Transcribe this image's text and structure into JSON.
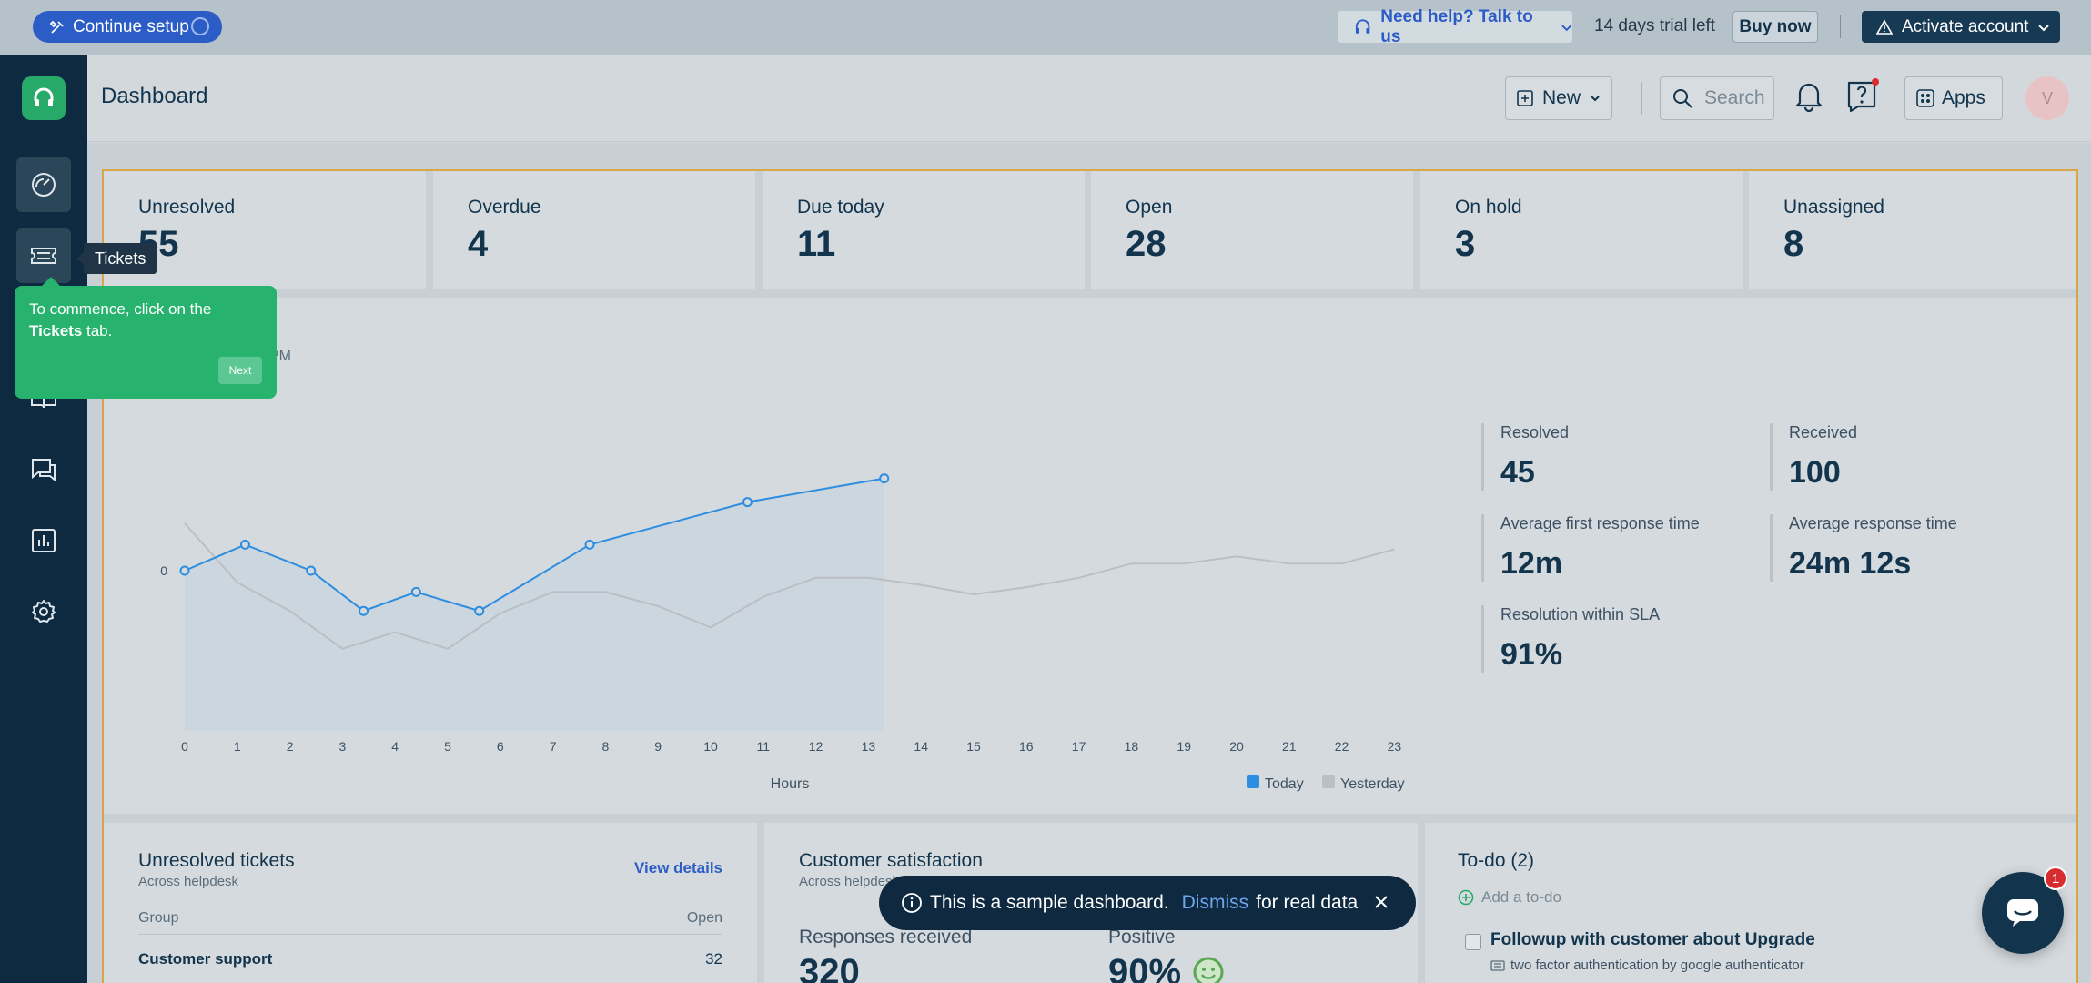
{
  "topbar": {
    "continue_setup": "Continue setup",
    "need_help": "Need help? Talk to us",
    "trial_text": "14 days trial left",
    "buy_now": "Buy now",
    "activate_account": "Activate account"
  },
  "header": {
    "title": "Dashboard",
    "new_label": "New",
    "search_placeholder": "Search",
    "apps_label": "Apps",
    "avatar_initial": "V"
  },
  "sidebar": {
    "items": [
      {
        "name": "dashboard",
        "icon": "dashboard-gauge-icon"
      },
      {
        "name": "tickets",
        "icon": "ticket-icon"
      },
      {
        "name": "knowledge-base",
        "icon": "book-icon"
      },
      {
        "name": "discussions",
        "icon": "chat-icon"
      },
      {
        "name": "reports",
        "icon": "bar-chart-icon"
      },
      {
        "name": "admin",
        "icon": "gear-icon"
      }
    ]
  },
  "tooltip": {
    "text": "Tickets"
  },
  "coach": {
    "line1": "To commence, click on the",
    "bold": "Tickets",
    "line2": " tab.",
    "next": "Next"
  },
  "cards": [
    {
      "label": "Unresolved",
      "value": "55"
    },
    {
      "label": "Overdue",
      "value": "4"
    },
    {
      "label": "Due today",
      "value": "11"
    },
    {
      "label": "Open",
      "value": "28"
    },
    {
      "label": "On hold",
      "value": "3"
    },
    {
      "label": "Unassigned",
      "value": "8"
    }
  ],
  "chart_panel": {
    "subtitle_fragment": "PM",
    "y_tick": "0",
    "legend_today": "Today",
    "legend_yesterday": "Yesterday",
    "colors": {
      "today": "#2d8de0",
      "yesterday": "#b9bfc4"
    }
  },
  "chart_data": {
    "type": "line",
    "xlabel": "Hours",
    "x": [
      0,
      1,
      2,
      3,
      4,
      5,
      6,
      7,
      8,
      9,
      10,
      11,
      12,
      13,
      14,
      15,
      16,
      17,
      18,
      19,
      20,
      21,
      22,
      23
    ],
    "series": [
      {
        "name": "Today",
        "x": [
          0,
          1.15,
          2.4,
          3.4,
          4.4,
          5.6,
          7.7,
          10.7,
          13.3
        ],
        "values": [
          0,
          1.1,
          0,
          -1.7,
          -0.9,
          -1.7,
          1.1,
          2.9,
          3.9
        ]
      },
      {
        "name": "Yesterday",
        "x": [
          0,
          1,
          2,
          3,
          4,
          5,
          6,
          7,
          8,
          9,
          10,
          11,
          12,
          13,
          14,
          15,
          16,
          17,
          18,
          19,
          20,
          21,
          22,
          23
        ],
        "values": [
          2,
          -0.5,
          -1.7,
          -3.3,
          -2.6,
          -3.3,
          -1.8,
          -0.9,
          -0.9,
          -1.5,
          -2.4,
          -1.1,
          -0.3,
          -0.3,
          -0.6,
          -1,
          -0.7,
          -0.3,
          0.3,
          0.3,
          0.6,
          0.3,
          0.3,
          0.9
        ]
      }
    ]
  },
  "stats": [
    {
      "label": "Resolved",
      "value": "45"
    },
    {
      "label": "Received",
      "value": "100"
    },
    {
      "label": "Average first response time",
      "value": "12m"
    },
    {
      "label": "Average response time",
      "value": "24m 12s"
    },
    {
      "label": "Resolution within SLA",
      "value": "91%"
    }
  ],
  "unresolved": {
    "title": "Unresolved tickets",
    "subtitle": "Across helpdesk",
    "view_details": "View details",
    "col_group": "Group",
    "col_open": "Open",
    "rows": [
      {
        "group": "Customer support",
        "open": "32"
      }
    ]
  },
  "csat": {
    "title": "Customer satisfaction",
    "subtitle": "Across helpdesk",
    "responses_label": "Responses received",
    "responses_value": "320",
    "positive_label": "Positive",
    "positive_value": "90%"
  },
  "todo": {
    "title": "To-do (2)",
    "add": "Add a to-do",
    "items": [
      {
        "title": "Followup with customer about Upgrade",
        "sub": "two factor authentication by google authenticator"
      }
    ]
  },
  "snackbar": {
    "text": "This is a sample dashboard.",
    "dismiss": "Dismiss",
    "suffix": "for real data"
  },
  "chat": {
    "badge": "1"
  }
}
